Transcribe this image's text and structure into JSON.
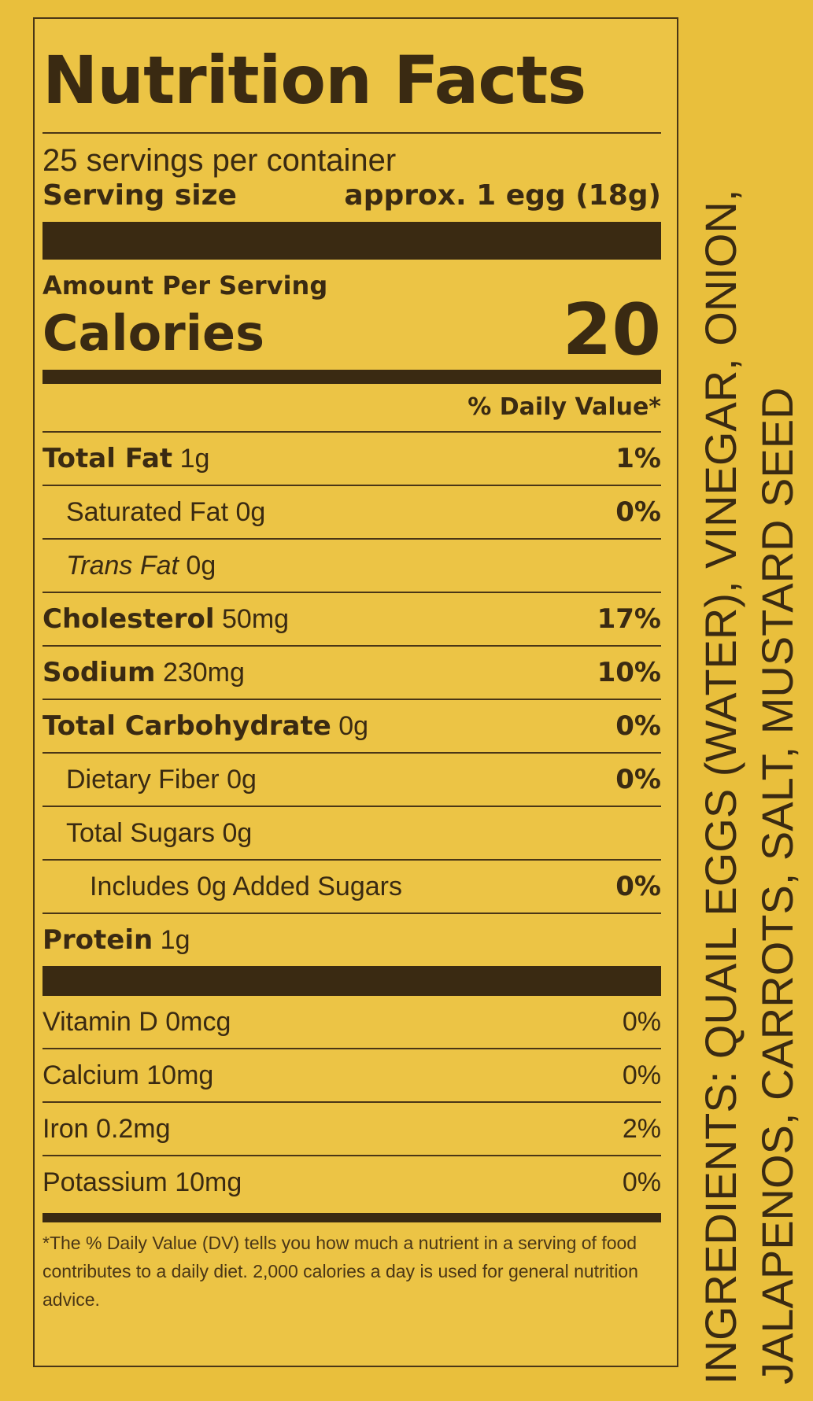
{
  "label": {
    "title": "Nutrition Facts",
    "servings_per_container": "25 servings per container",
    "serving_size_label": "Serving size",
    "serving_size_value": "approx. 1 egg (18g)",
    "amount_per_serving": "Amount Per Serving",
    "calories_label": "Calories",
    "calories_value": "20",
    "daily_value_header": "% Daily Value*",
    "nutrients": [
      {
        "name": "Total Fat",
        "amount": "1g",
        "dv": "1%"
      },
      {
        "name": "Saturated Fat",
        "amount": "0g",
        "dv": "0%"
      },
      {
        "name": "Trans Fat",
        "amount": "0g",
        "dv": ""
      },
      {
        "name": "Cholesterol",
        "amount": "50mg",
        "dv": "17%"
      },
      {
        "name": "Sodium",
        "amount": "230mg",
        "dv": "10%"
      },
      {
        "name": "Total Carbohydrate",
        "amount": "0g",
        "dv": "0%"
      },
      {
        "name": "Dietary Fiber",
        "amount": "0g",
        "dv": "0%"
      },
      {
        "name": "Total Sugars",
        "amount": "0g",
        "dv": ""
      },
      {
        "name": "Includes 0g Added Sugars",
        "amount": "",
        "dv": "0%"
      },
      {
        "name": "Protein",
        "amount": "1g",
        "dv": ""
      }
    ],
    "vitamins": [
      {
        "name": "Vitamin D",
        "amount": "0mcg",
        "dv": "0%"
      },
      {
        "name": "Calcium",
        "amount": "10mg",
        "dv": "0%"
      },
      {
        "name": "Iron",
        "amount": "0.2mg",
        "dv": "2%"
      },
      {
        "name": "Potassium",
        "amount": "10mg",
        "dv": "0%"
      }
    ],
    "footnote": "*The % Daily Value (DV) tells you how much a nutrient in a serving of food contributes to a daily diet. 2,000 calories a day is used for general nutrition advice."
  },
  "ingredients": {
    "line1": "INGREDIENTS: QUAIL EGGS (WATER), VINEGAR, ONION,",
    "line2": "JALAPENOS, CARROTS, SALT, MUSTARD SEED"
  }
}
